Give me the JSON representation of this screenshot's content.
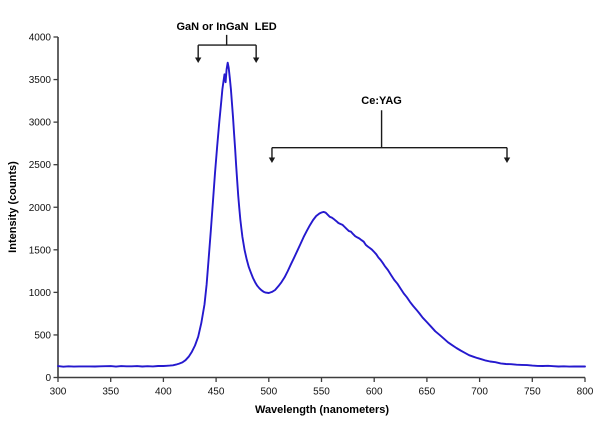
{
  "chart_data": {
    "type": "line",
    "xlabel": "Wavelength (nanometers)",
    "ylabel": "Intensity (counts)",
    "xlim": [
      300,
      800
    ],
    "ylim": [
      0,
      4000
    ],
    "x_ticks": [
      300,
      350,
      400,
      450,
      500,
      550,
      600,
      650,
      700,
      750,
      800
    ],
    "y_ticks": [
      0,
      500,
      1000,
      1500,
      2000,
      2500,
      3000,
      3500,
      4000
    ],
    "grid": false,
    "legend": "none",
    "line_color": "#2519ce",
    "axis_color": "#3d3d3d",
    "annotation_color": "#1a1a1a",
    "noise_amplitude": 6,
    "series": [
      {
        "x": [
          300,
          305,
          310,
          315,
          320,
          325,
          330,
          335,
          340,
          345,
          350,
          355,
          360,
          365,
          370,
          375,
          380,
          385,
          390,
          395,
          400,
          403,
          406,
          409,
          412,
          415,
          418,
          421,
          424,
          427,
          430,
          433,
          436,
          439,
          441,
          443,
          445,
          447,
          449,
          451,
          453,
          455,
          456,
          457,
          458,
          459,
          460,
          461,
          462,
          463,
          464,
          465,
          466,
          467,
          468,
          469,
          470,
          471,
          472,
          473,
          474,
          475,
          477,
          479,
          481,
          483,
          485,
          487,
          489,
          491,
          493,
          495,
          497,
          500,
          503,
          506,
          509,
          512,
          515,
          518,
          521,
          524,
          527,
          530,
          533,
          536,
          539,
          542,
          545,
          548,
          550,
          552,
          554,
          556,
          558,
          560,
          562,
          564,
          566,
          568,
          570,
          572,
          574,
          576,
          578,
          580,
          582,
          584,
          586,
          588,
          590,
          592,
          594,
          596,
          598,
          600,
          602,
          604,
          606,
          608,
          610,
          613,
          616,
          619,
          622,
          625,
          628,
          631,
          634,
          637,
          640,
          643,
          646,
          650,
          654,
          658,
          662,
          666,
          670,
          674,
          678,
          682,
          686,
          690,
          694,
          698,
          702,
          706,
          710,
          715,
          720,
          725,
          730,
          735,
          740,
          745,
          750,
          755,
          760,
          765,
          770,
          775,
          780,
          785,
          790,
          795,
          800
        ],
        "y": [
          131,
          130,
          131,
          129,
          131,
          130,
          132,
          130,
          131,
          130,
          132,
          130,
          131,
          130,
          132,
          131,
          130,
          132,
          131,
          133,
          135,
          137,
          140,
          146,
          153,
          163,
          180,
          205,
          245,
          300,
          375,
          480,
          640,
          860,
          1090,
          1400,
          1720,
          2060,
          2400,
          2720,
          3000,
          3260,
          3390,
          3480,
          3560,
          3470,
          3620,
          3700,
          3640,
          3520,
          3390,
          3230,
          3060,
          2880,
          2690,
          2500,
          2310,
          2140,
          1990,
          1860,
          1750,
          1650,
          1500,
          1390,
          1300,
          1230,
          1170,
          1120,
          1080,
          1050,
          1025,
          1010,
          1000,
          995,
          1005,
          1030,
          1070,
          1120,
          1180,
          1250,
          1330,
          1410,
          1490,
          1570,
          1650,
          1720,
          1790,
          1850,
          1895,
          1925,
          1940,
          1945,
          1935,
          1910,
          1885,
          1875,
          1860,
          1840,
          1815,
          1805,
          1790,
          1770,
          1745,
          1720,
          1710,
          1685,
          1660,
          1645,
          1630,
          1615,
          1595,
          1560,
          1540,
          1520,
          1500,
          1475,
          1445,
          1410,
          1380,
          1350,
          1310,
          1260,
          1205,
          1150,
          1100,
          1045,
          990,
          940,
          890,
          840,
          795,
          750,
          705,
          650,
          595,
          545,
          500,
          455,
          415,
          380,
          345,
          315,
          288,
          264,
          243,
          226,
          211,
          198,
          188,
          177,
          168,
          161,
          155,
          150,
          146,
          143,
          140,
          138,
          136,
          135,
          133,
          132,
          131,
          130,
          129,
          129,
          128
        ]
      }
    ],
    "annotations": [
      {
        "label": "GaN or InGaN  LED",
        "label_x_nm": 460,
        "label_y_counts": 4115,
        "span_nm": [
          433,
          488
        ],
        "bracket_y_counts": 3905,
        "arrow_tip_counts": 3695,
        "stub_top_counts": 4025
      },
      {
        "label": "Ce:YAG",
        "label_x_nm": 607,
        "label_y_counts": 3250,
        "span_nm": [
          503,
          726
        ],
        "bracket_y_counts": 2700,
        "arrow_tip_counts": 2520,
        "stub_top_counts": 3140
      }
    ]
  }
}
